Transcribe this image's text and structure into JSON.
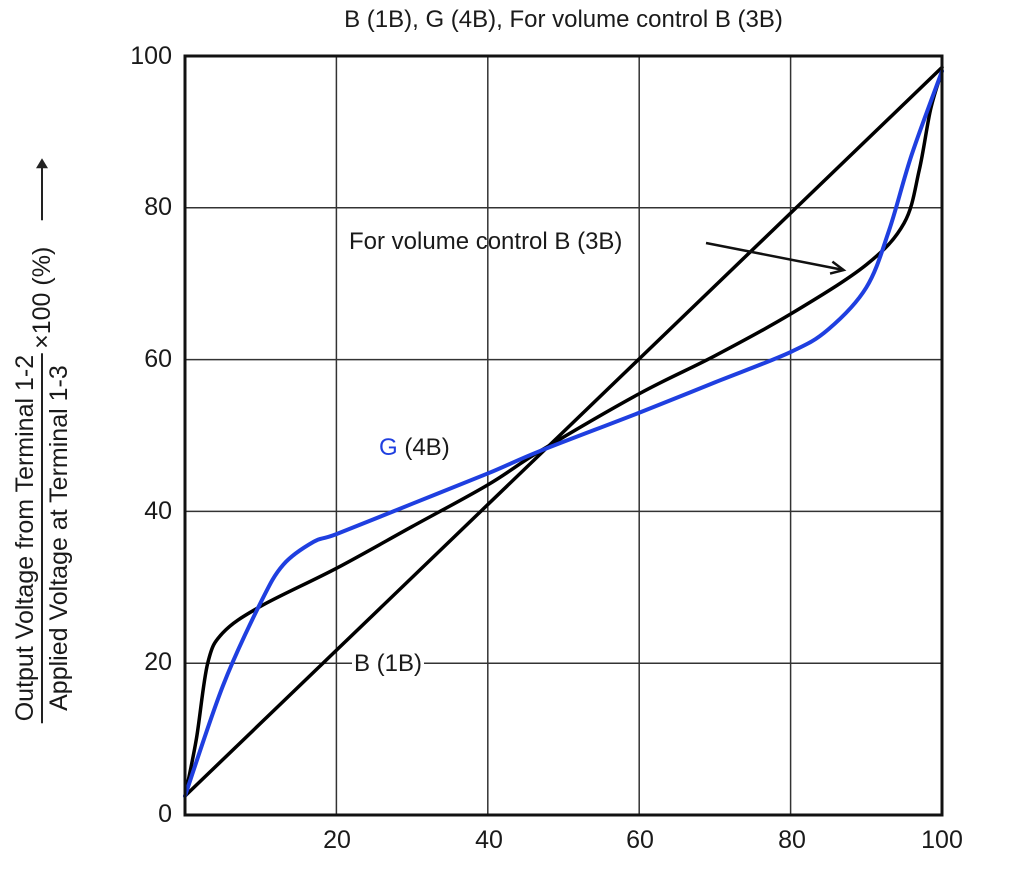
{
  "chart_data": {
    "type": "line",
    "title": "B (1B), G (4B), For volume control B (3B)",
    "xlabel": "",
    "ylabel": {
      "numerator": "Output Voltage from Terminal 1-2",
      "denominator": "Applied Voltage at Terminal 1-3",
      "multiplier": "×100 (%)",
      "arrow": "up-arrow"
    },
    "xlim": [
      0,
      100
    ],
    "ylim": [
      0,
      100
    ],
    "x_ticks": [
      "20",
      "40",
      "60",
      "80",
      "100"
    ],
    "y_ticks": [
      "0",
      "20",
      "40",
      "60",
      "80",
      "100"
    ],
    "grid": true,
    "series": [
      {
        "name": "B (1B)",
        "color": "#000000",
        "x": [
          0,
          20,
          40,
          60,
          80,
          100
        ],
        "y": [
          2.5,
          21.7,
          40.9,
          60.1,
          79.3,
          98.5
        ]
      },
      {
        "name": "For volume control B (3B)",
        "color": "#000000",
        "x": [
          0,
          1.5,
          3,
          5,
          10,
          20,
          30,
          40,
          47,
          60,
          70,
          80,
          90,
          95,
          97,
          98.5,
          100
        ],
        "y": [
          2.5,
          10,
          20,
          24,
          27.5,
          32.5,
          38,
          43.5,
          48,
          55.5,
          60.5,
          66,
          72.5,
          78,
          85,
          93,
          98
        ]
      },
      {
        "name": "G (4B)",
        "color": "#1f3fe0",
        "x": [
          0,
          5,
          10,
          13,
          17,
          20,
          30,
          40,
          47,
          60,
          70,
          80,
          85,
          90,
          93,
          96,
          100
        ],
        "y": [
          2.5,
          17,
          28,
          33,
          36,
          37,
          41,
          45,
          48,
          53,
          57,
          61,
          64,
          69.5,
          77,
          87,
          98
        ]
      }
    ],
    "annotations": [
      {
        "text": "For volume control B (3B)",
        "x": 23,
        "y": 76.5,
        "arrow_to": [
          87,
          71.8
        ]
      },
      {
        "text_colored": "G",
        "text": " (4B)",
        "x": 26,
        "y": 48
      },
      {
        "text": "B (1B)",
        "x": 22,
        "y": 20
      }
    ]
  }
}
